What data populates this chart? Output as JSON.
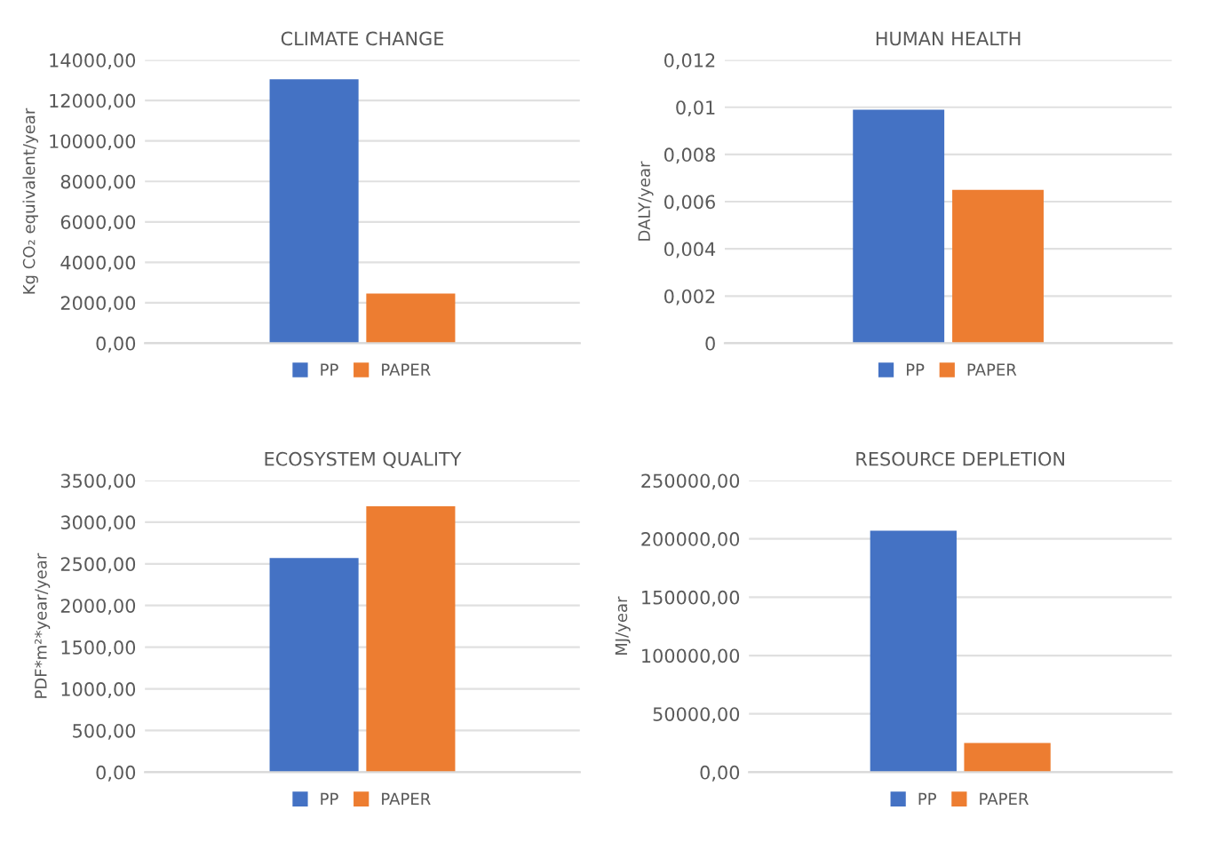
{
  "chart_data": [
    {
      "type": "bar",
      "title": "CLIMATE CHANGE",
      "ylabel": "Kg CO₂ equivalent/year",
      "categories": [
        null
      ],
      "series": [
        {
          "name": "PP",
          "color": "#4472c4",
          "values": [
            13050
          ]
        },
        {
          "name": "PAPER",
          "color": "#ed7d31",
          "values": [
            2450
          ]
        }
      ],
      "ylim": [
        0,
        14000
      ],
      "yticks": [
        {
          "value": 0,
          "label": "0,00"
        },
        {
          "value": 2000,
          "label": "2000,00"
        },
        {
          "value": 4000,
          "label": "4000,00"
        },
        {
          "value": 6000,
          "label": "6000,00"
        },
        {
          "value": 8000,
          "label": "8000,00"
        },
        {
          "value": 10000,
          "label": "10000,00"
        },
        {
          "value": 12000,
          "label": "12000,00"
        },
        {
          "value": 14000,
          "label": "14000,00"
        }
      ],
      "grid": "y",
      "legend": "bottom"
    },
    {
      "type": "bar",
      "title": "HUMAN HEALTH",
      "ylabel": "DALY/year",
      "categories": [
        null
      ],
      "series": [
        {
          "name": "PP",
          "color": "#4472c4",
          "values": [
            0.0099
          ]
        },
        {
          "name": "PAPER",
          "color": "#ed7d31",
          "values": [
            0.0065
          ]
        }
      ],
      "ylim": [
        0,
        0.012
      ],
      "yticks": [
        0,
        {
          "value": 0.002,
          "label": "0,002"
        },
        {
          "value": 0.004,
          "label": "0,004"
        },
        {
          "value": 0.006,
          "label": "0,006"
        },
        {
          "value": 0.008,
          "label": "0,008"
        },
        {
          "value": 0.01,
          "label": "0,01"
        },
        {
          "value": 0.012,
          "label": "0,012"
        }
      ],
      "grid": "y",
      "legend": "bottom"
    },
    {
      "type": "bar",
      "title": "ECOSYSTEM QUALITY",
      "ylabel": "PDF*m²*year/year",
      "categories": [
        null
      ],
      "series": [
        {
          "name": "PP",
          "color": "#4472c4",
          "values": [
            2570
          ]
        },
        {
          "name": "PAPER",
          "color": "#ed7d31",
          "values": [
            3190
          ]
        }
      ],
      "ylim": [
        0,
        3500
      ],
      "yticks": [
        {
          "value": 0,
          "label": "0,00"
        },
        {
          "value": 500,
          "label": "500,00"
        },
        {
          "value": 1000,
          "label": "1000,00"
        },
        {
          "value": 1500,
          "label": "1500,00"
        },
        {
          "value": 2000,
          "label": "2000,00"
        },
        {
          "value": 2500,
          "label": "2500,00"
        },
        {
          "value": 3000,
          "label": "3000,00"
        },
        {
          "value": 3500,
          "label": "3500,00"
        }
      ],
      "grid": "y",
      "legend": "bottom"
    },
    {
      "type": "bar",
      "title": "RESOURCE DEPLETION",
      "ylabel": "MJ/year",
      "categories": [
        null
      ],
      "series": [
        {
          "name": "PP",
          "color": "#4472c4",
          "values": [
            207000
          ]
        },
        {
          "name": "PAPER",
          "color": "#ed7d31",
          "values": [
            25000
          ]
        }
      ],
      "ylim": [
        0,
        250000
      ],
      "yticks": [
        {
          "value": 0,
          "label": "0,00"
        },
        {
          "value": 50000,
          "label": "50000,00"
        },
        {
          "value": 100000,
          "label": "100000,00"
        },
        {
          "value": 150000,
          "label": "150000,00"
        },
        {
          "value": 200000,
          "label": "200000,00"
        },
        {
          "value": 250000,
          "label": "250000,00"
        }
      ],
      "grid": "y",
      "legend": "bottom"
    }
  ]
}
